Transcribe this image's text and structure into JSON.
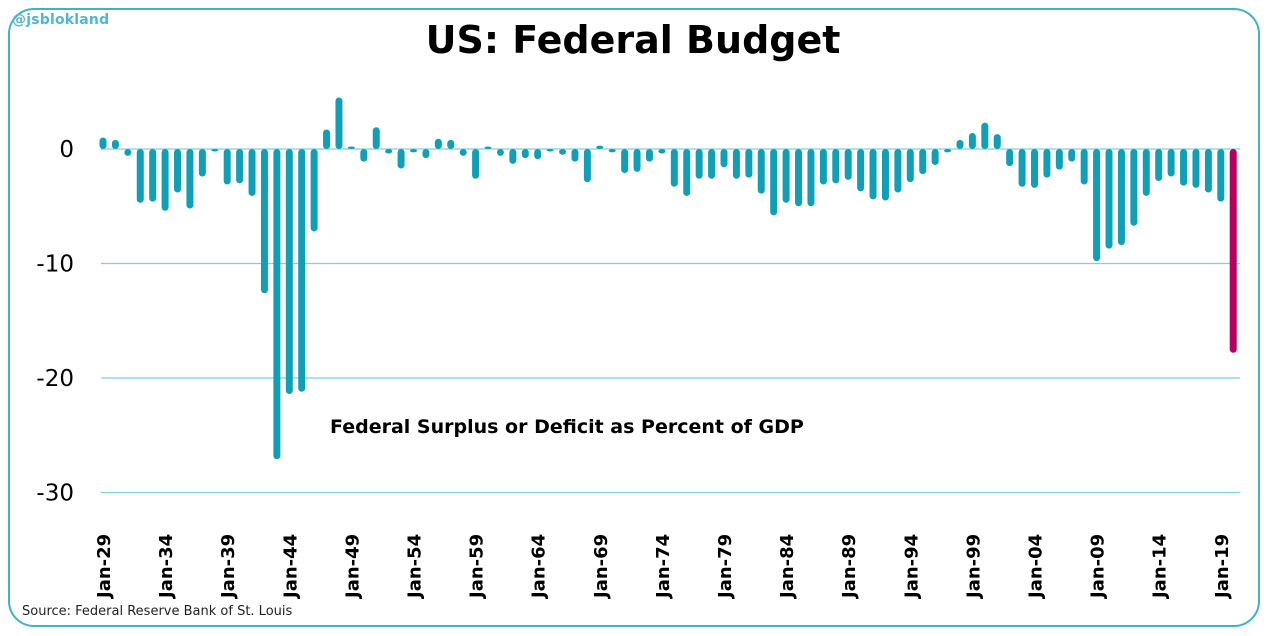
{
  "handle": "@jsblokland",
  "source": "Source: Federal Reserve Bank of St. Louis",
  "colors": {
    "bar": "#0fa0b8",
    "highlight": "#b5005f",
    "grid": "#7fcfdc",
    "frame": "#3fb2c6"
  },
  "chart_data": {
    "type": "bar",
    "title": "US: Federal Budget",
    "annotation": "Federal Surplus or Deficit as Percent of GDP",
    "xlabel": "",
    "ylabel": "",
    "ylim": [
      -30,
      5
    ],
    "yticks": [
      0,
      -10,
      -20,
      -30
    ],
    "ytick_labels": [
      "0",
      "-10",
      "-20",
      "-30"
    ],
    "grid": true,
    "xtick_labels": [
      "Jan-29",
      "Jan-34",
      "Jan-39",
      "Jan-44",
      "Jan-49",
      "Jan-54",
      "Jan-59",
      "Jan-64",
      "Jan-69",
      "Jan-74",
      "Jan-79",
      "Jan-84",
      "Jan-89",
      "Jan-94",
      "Jan-99",
      "Jan-04",
      "Jan-09",
      "Jan-14",
      "Jan-19"
    ],
    "highlight_last": true,
    "categories": [
      1929,
      1930,
      1931,
      1932,
      1933,
      1934,
      1935,
      1936,
      1937,
      1938,
      1939,
      1940,
      1941,
      1942,
      1943,
      1944,
      1945,
      1946,
      1947,
      1948,
      1949,
      1950,
      1951,
      1952,
      1953,
      1954,
      1955,
      1956,
      1957,
      1958,
      1959,
      1960,
      1961,
      1962,
      1963,
      1964,
      1965,
      1966,
      1967,
      1968,
      1969,
      1970,
      1971,
      1972,
      1973,
      1974,
      1975,
      1976,
      1977,
      1978,
      1979,
      1980,
      1981,
      1982,
      1983,
      1984,
      1985,
      1986,
      1987,
      1988,
      1989,
      1990,
      1991,
      1992,
      1993,
      1994,
      1995,
      1996,
      1997,
      1998,
      1999,
      2000,
      2001,
      2002,
      2003,
      2004,
      2005,
      2006,
      2007,
      2008,
      2009,
      2010,
      2011,
      2012,
      2013,
      2014,
      2015,
      2016,
      2017,
      2018,
      2019,
      2020
    ],
    "values": [
      1.0,
      0.8,
      -0.6,
      -4.7,
      -4.6,
      -5.4,
      -3.8,
      -5.2,
      -2.4,
      -0.1,
      -3.1,
      -3.0,
      -4.1,
      -12.6,
      -27.1,
      -21.4,
      -21.2,
      -7.2,
      1.7,
      4.5,
      0.2,
      -1.1,
      1.9,
      -0.4,
      -1.7,
      -0.3,
      -0.8,
      0.9,
      0.8,
      -0.6,
      -2.6,
      0.1,
      -0.6,
      -1.3,
      -0.8,
      -0.9,
      -0.2,
      -0.5,
      -1.1,
      -2.9,
      0.3,
      -0.3,
      -2.1,
      -2.0,
      -1.1,
      -0.4,
      -3.3,
      -4.1,
      -2.6,
      -2.6,
      -1.6,
      -2.6,
      -2.5,
      -3.9,
      -5.8,
      -4.7,
      -5.0,
      -5.0,
      -3.1,
      -3.0,
      -2.7,
      -3.7,
      -4.4,
      -4.5,
      -3.8,
      -2.9,
      -2.2,
      -1.4,
      -0.3,
      0.8,
      1.4,
      2.3,
      1.3,
      -1.5,
      -3.3,
      -3.4,
      -2.5,
      -1.8,
      -1.1,
      -3.1,
      -9.8,
      -8.7,
      -8.4,
      -6.7,
      -4.1,
      -2.8,
      -2.4,
      -3.2,
      -3.4,
      -3.8,
      -4.6,
      -17.8
    ]
  }
}
